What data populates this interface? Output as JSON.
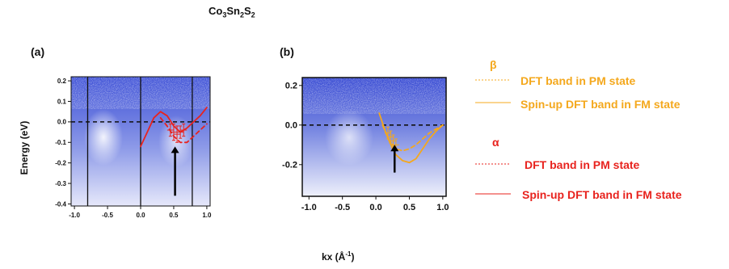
{
  "title": {
    "main": "Co",
    "s1": "3",
    "m2": "Sn",
    "s2": "2",
    "m3": "S",
    "s3": "2"
  },
  "xlabel": {
    "main": "kx (Å",
    "sup": "-1",
    "end": ")"
  },
  "ylabel": "Energy (eV)",
  "colors": {
    "alpha": "#e8231e",
    "beta": "#f4a81d"
  },
  "legend": {
    "beta_symbol": "β",
    "alpha_symbol": "α",
    "beta_pm": "DFT band in PM state",
    "beta_fm": "Spin-up DFT band in FM state",
    "alpha_pm": "DFT band in PM state",
    "alpha_fm": "Spin-up DFT band in FM state"
  },
  "chart_data": [
    {
      "panel": "(a)",
      "type": "heatmap",
      "xlim": [
        -1.05,
        1.05
      ],
      "ylim": [
        -0.41,
        0.22
      ],
      "xticks": [
        "-1.0",
        "-0.5",
        "0.0",
        "0.5",
        "1.0"
      ],
      "xtick_values": [
        -1.0,
        -0.5,
        0.0,
        0.5,
        1.0
      ],
      "yticks": [
        "0.2",
        "0.1",
        "0.0",
        "-0.1",
        "-0.2",
        "-0.3",
        "-0.4"
      ],
      "ytick_values": [
        0.2,
        0.1,
        0.0,
        -0.1,
        -0.2,
        -0.3,
        -0.4
      ],
      "fermi_level": 0.0,
      "vertical_lines": [
        -0.8,
        0.0,
        0.78
      ],
      "arrow": {
        "x": 0.52,
        "y_from": -0.36,
        "y_to": -0.12
      },
      "series": [
        {
          "band": "alpha",
          "style": "solid",
          "x": [
            0.0,
            0.1,
            0.2,
            0.3,
            0.4,
            0.5,
            0.6,
            0.7,
            0.8,
            0.9,
            1.0
          ],
          "y": [
            -0.12,
            -0.05,
            0.02,
            0.05,
            0.03,
            -0.02,
            -0.05,
            -0.03,
            0.0,
            0.03,
            0.07
          ]
        },
        {
          "band": "alpha",
          "style": "dashed",
          "x": [
            0.3,
            0.4,
            0.5,
            0.6,
            0.7,
            0.8,
            0.9,
            1.0
          ],
          "y": [
            0.02,
            -0.02,
            -0.07,
            -0.1,
            -0.1,
            -0.07,
            -0.04,
            -0.01
          ]
        },
        {
          "band": "alpha",
          "style": "markers",
          "x": [
            0.45,
            0.5,
            0.55,
            0.6,
            0.65
          ],
          "y": [
            -0.04,
            -0.05,
            -0.06,
            -0.05,
            -0.04
          ],
          "err": [
            0.03,
            0.04,
            0.04,
            0.03,
            0.03
          ]
        }
      ]
    },
    {
      "panel": "(b)",
      "type": "heatmap",
      "xlim": [
        -1.1,
        1.05
      ],
      "ylim": [
        -0.36,
        0.24
      ],
      "xticks": [
        "-1.0",
        "-0.5",
        "0.0",
        "0.5",
        "1.0"
      ],
      "xtick_values": [
        -1.0,
        -0.5,
        0.0,
        0.5,
        1.0
      ],
      "yticks": [
        "0.2",
        "0.0",
        "-0.2"
      ],
      "ytick_values": [
        0.2,
        0.0,
        -0.2
      ],
      "fermi_level": 0.0,
      "arrow": {
        "x": 0.28,
        "y_from": -0.24,
        "y_to": -0.1
      },
      "series": [
        {
          "band": "beta",
          "style": "solid",
          "x": [
            0.05,
            0.1,
            0.15,
            0.2,
            0.25,
            0.3,
            0.4,
            0.5,
            0.6,
            0.7,
            0.8,
            0.9,
            1.0
          ],
          "y": [
            0.06,
            0.01,
            -0.04,
            -0.08,
            -0.12,
            -0.15,
            -0.18,
            -0.19,
            -0.17,
            -0.12,
            -0.07,
            -0.03,
            0.0
          ]
        },
        {
          "band": "beta",
          "style": "dashed",
          "x": [
            0.1,
            0.15,
            0.2,
            0.25,
            0.3,
            0.4,
            0.5,
            0.6,
            0.7,
            0.8,
            0.9,
            1.0
          ],
          "y": [
            0.0,
            -0.04,
            -0.08,
            -0.1,
            -0.12,
            -0.13,
            -0.12,
            -0.1,
            -0.07,
            -0.04,
            -0.02,
            0.0
          ]
        },
        {
          "band": "beta",
          "style": "markers",
          "x": [
            0.18,
            0.22,
            0.26,
            0.3
          ],
          "y": [
            -0.04,
            -0.06,
            -0.08,
            -0.1
          ],
          "err": [
            0.03,
            0.03,
            0.03,
            0.03
          ]
        }
      ]
    }
  ]
}
